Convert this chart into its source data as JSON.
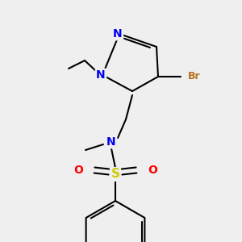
{
  "background_color": "#efefef",
  "bond_color": "#000000",
  "bond_width": 1.5,
  "atom_colors": {
    "N": "#0000ee",
    "Br": "#b87020",
    "S": "#cccc00",
    "O": "#ff0000",
    "C": "#000000"
  },
  "font_size": 9
}
